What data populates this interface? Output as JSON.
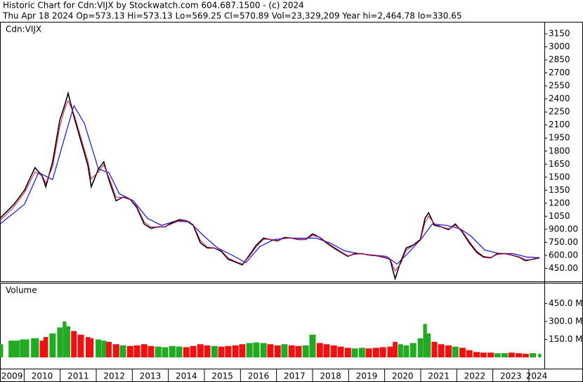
{
  "chart_data": {
    "type": "stock",
    "title": "Historic Chart for Cdn:VIJX by Stockwatch.com 604.687.1500 - (c) 2024",
    "subtitle": "Thu Apr 18 2024   Op=573.13   Hi=573.13   Lo=569.25   Cl=570.89   Vol=23,329,209   Year hi=2,464.78   lo=330.65",
    "symbol_label": "Cdn:VIJX",
    "volume_label": "Volume",
    "xlim": [
      2009.33,
      2024.43
    ],
    "xticks": [
      2009,
      2010,
      2011,
      2012,
      2013,
      2014,
      2015,
      2016,
      2017,
      2018,
      2019,
      2020,
      2021,
      2022,
      2023,
      2024
    ],
    "ylim": [
      300,
      3280
    ],
    "yticks": [
      {
        "value": 450,
        "label": "450.00"
      },
      {
        "value": 600,
        "label": "600.00"
      },
      {
        "value": 750,
        "label": "750.00"
      },
      {
        "value": 900,
        "label": "900.00"
      },
      1050,
      1200,
      1350,
      1500,
      1650,
      1800,
      1950,
      2100,
      2250,
      2400,
      2550,
      2700,
      2850,
      3000,
      3150
    ],
    "y2lim": [
      0,
      617
    ],
    "y2ticks": [
      {
        "value": 150,
        "label": "150.0 M"
      },
      {
        "value": 300,
        "label": "300.0 M"
      },
      {
        "value": 450,
        "label": "450.0 M"
      }
    ],
    "x": [
      2009.33,
      2009.72,
      2010.01,
      2010.3,
      2010.5,
      2010.6,
      2010.79,
      2010.99,
      2011.12,
      2011.22,
      2011.38,
      2011.57,
      2011.77,
      2011.86,
      2012.06,
      2012.21,
      2012.35,
      2012.55,
      2012.74,
      2012.94,
      2013.13,
      2013.33,
      2013.52,
      2013.72,
      2013.91,
      2014.11,
      2014.3,
      2014.5,
      2014.69,
      2014.89,
      2015.08,
      2015.28,
      2015.47,
      2015.66,
      2015.86,
      2016.05,
      2016.25,
      2016.44,
      2016.64,
      2016.83,
      2017.03,
      2017.22,
      2017.42,
      2017.61,
      2017.81,
      2018.0,
      2018.2,
      2018.39,
      2018.59,
      2018.78,
      2018.98,
      2019.17,
      2019.37,
      2019.56,
      2019.76,
      2019.95,
      2020.15,
      2020.29,
      2020.44,
      2020.6,
      2020.79,
      2020.99,
      2021.12,
      2021.22,
      2021.38,
      2021.57,
      2021.77,
      2021.96,
      2022.16,
      2022.35,
      2022.55,
      2022.74,
      2022.94,
      2023.13,
      2023.33,
      2023.52,
      2023.72,
      2023.91,
      2024.11,
      2024.3
    ],
    "series": [
      {
        "color": "#000000",
        "values": [
          1026,
          1188,
          1350,
          1610,
          1512,
          1390,
          1675,
          2160,
          2323,
          2465,
          2200,
          1920,
          1633,
          1390,
          1593,
          1675,
          1470,
          1228,
          1270,
          1245,
          1147,
          960,
          910,
          928,
          928,
          977,
          1010,
          1000,
          945,
          742,
          685,
          685,
          645,
          555,
          523,
          490,
          604,
          718,
          798,
          782,
          766,
          807,
          798,
          782,
          782,
          847,
          807,
          742,
          685,
          636,
          588,
          620,
          620,
          604,
          596,
          580,
          555,
          331,
          523,
          685,
          718,
          782,
          1026,
          1090,
          945,
          928,
          896,
          960,
          864,
          742,
          636,
          580,
          572,
          620,
          620,
          604,
          580,
          539,
          555,
          571
        ]
      },
      {
        "color": "#d01060",
        "values": [
          1000,
          1160,
          1320,
          1560,
          1520,
          1430,
          1620,
          2080,
          2280,
          2380,
          2230,
          1960,
          1680,
          1480,
          1560,
          1640,
          1500,
          1270,
          1265,
          1250,
          1160,
          985,
          925,
          925,
          930,
          965,
          1000,
          1000,
          955,
          770,
          695,
          685,
          655,
          570,
          530,
          500,
          590,
          700,
          785,
          785,
          770,
          800,
          798,
          785,
          782,
          830,
          810,
          750,
          695,
          645,
          595,
          612,
          618,
          606,
          598,
          584,
          560,
          420,
          500,
          660,
          712,
          770,
          980,
          1050,
          965,
          930,
          905,
          945,
          875,
          760,
          650,
          590,
          575,
          610,
          618,
          606,
          585,
          548,
          552,
          568
        ]
      }
    ],
    "ma_x": [
      2009.33,
      2010.01,
      2010.4,
      2010.79,
      2011.18,
      2011.38,
      2011.67,
      2012.06,
      2012.35,
      2012.64,
      2013.03,
      2013.42,
      2013.81,
      2014.2,
      2014.59,
      2014.98,
      2015.37,
      2015.76,
      2016.15,
      2016.54,
      2016.93,
      2017.32,
      2017.71,
      2018.1,
      2018.49,
      2018.88,
      2019.27,
      2019.66,
      2020.05,
      2020.34,
      2020.64,
      2021.03,
      2021.32,
      2021.71,
      2022.1,
      2022.39,
      2022.78,
      2023.17,
      2023.56,
      2023.95,
      2024.3
    ],
    "ma": {
      "color": "#1010e0",
      "values": [
        960,
        1188,
        1553,
        1472,
        2040,
        2323,
        2120,
        1593,
        1553,
        1310,
        1228,
        1026,
        945,
        993,
        985,
        823,
        685,
        604,
        515,
        701,
        782,
        798,
        798,
        798,
        742,
        653,
        620,
        604,
        588,
        499,
        620,
        798,
        960,
        945,
        904,
        823,
        661,
        620,
        620,
        580,
        572
      ]
    },
    "volume": {
      "up_color": "#22aa22",
      "down_color": "#ee1111",
      "values": [
        110,
        140,
        150,
        160,
        140,
        170,
        200,
        250,
        300,
        260,
        220,
        190,
        170,
        160,
        150,
        140,
        130,
        110,
        100,
        95,
        100,
        110,
        95,
        90,
        85,
        95,
        90,
        85,
        95,
        110,
        100,
        95,
        90,
        95,
        100,
        110,
        120,
        125,
        120,
        110,
        100,
        110,
        100,
        95,
        100,
        190,
        120,
        110,
        100,
        90,
        80,
        75,
        80,
        75,
        80,
        85,
        90,
        130,
        110,
        100,
        120,
        160,
        280,
        200,
        130,
        110,
        100,
        90,
        80,
        60,
        45,
        40,
        40,
        35,
        35,
        40,
        35,
        30,
        35,
        30
      ]
    }
  }
}
